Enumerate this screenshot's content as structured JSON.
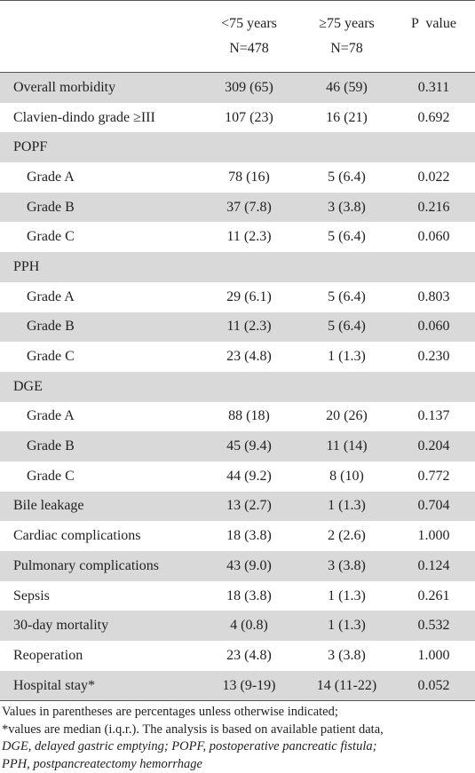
{
  "header": {
    "col0": "",
    "col1_line1": "<75 years",
    "col1_line2": "N=478",
    "col2_line1": "≥75 years",
    "col2_line2": "N=78",
    "col3": "P  value"
  },
  "rows": [
    {
      "label": "Overall morbidity",
      "a": "309 (65)",
      "b": "46 (59)",
      "p": "0.311"
    },
    {
      "label": "Clavien-dindo grade ≥III",
      "a": "107 (23)",
      "b": "16 (21)",
      "p": "0.692"
    },
    {
      "label": "POPF",
      "a": "",
      "b": "",
      "p": ""
    },
    {
      "label": "Grade A",
      "a": "78 (16)",
      "b": "5 (6.4)",
      "p": "0.022"
    },
    {
      "label": "Grade B",
      "a": "37 (7.8)",
      "b": "3 (3.8)",
      "p": "0.216"
    },
    {
      "label": "Grade C",
      "a": "11 (2.3)",
      "b": "5 (6.4)",
      "p": "0.060"
    },
    {
      "label": "PPH",
      "a": "",
      "b": "",
      "p": ""
    },
    {
      "label": "Grade A",
      "a": "29 (6.1)",
      "b": "5 (6.4)",
      "p": "0.803"
    },
    {
      "label": "Grade B",
      "a": "11 (2.3)",
      "b": "5 (6.4)",
      "p": "0.060"
    },
    {
      "label": "Grade C",
      "a": "23 (4.8)",
      "b": "1 (1.3)",
      "p": "0.230"
    },
    {
      "label": "DGE",
      "a": "",
      "b": "",
      "p": ""
    },
    {
      "label": "Grade A",
      "a": "88 (18)",
      "b": "20 (26)",
      "p": "0.137"
    },
    {
      "label": "Grade B",
      "a": "45 (9.4)",
      "b": "11 (14)",
      "p": "0.204"
    },
    {
      "label": "Grade C",
      "a": "44 (9.2)",
      "b": "8 (10)",
      "p": "0.772"
    },
    {
      "label": "Bile leakage",
      "a": "13 (2.7)",
      "b": "1 (1.3)",
      "p": "0.704"
    },
    {
      "label": "Cardiac complications",
      "a": "18 (3.8)",
      "b": "2 (2.6)",
      "p": "1.000"
    },
    {
      "label": "Pulmonary complications",
      "a": "43 (9.0)",
      "b": "3 (3.8)",
      "p": "0.124"
    },
    {
      "label": "Sepsis",
      "a": "18 (3.8)",
      "b": "1 (1.3)",
      "p": "0.261"
    },
    {
      "label": "30-day mortality",
      "a": "4 (0.8)",
      "b": "1 (1.3)",
      "p": "0.532"
    },
    {
      "label": "Reoperation",
      "a": "23 (4.8)",
      "b": "3 (3.8)",
      "p": "1.000"
    },
    {
      "label": "Hospital stay*",
      "a": "13 (9-19)",
      "b": "14 (11-22)",
      "p": "0.052"
    }
  ],
  "notes": {
    "line1": "Values in parentheses are percentages unless otherwise indicated;",
    "line2": "*values are median (i.q.r.). The analysis is based on available patient data,",
    "line3": "DGE, delayed gastric emptying; POPF, postoperative pancreatic fistula;",
    "line4": "PPH, postpancreatectomy hemorrhage"
  },
  "colors": {
    "row_shade": "#d9d9d9",
    "rule": "#555555"
  }
}
